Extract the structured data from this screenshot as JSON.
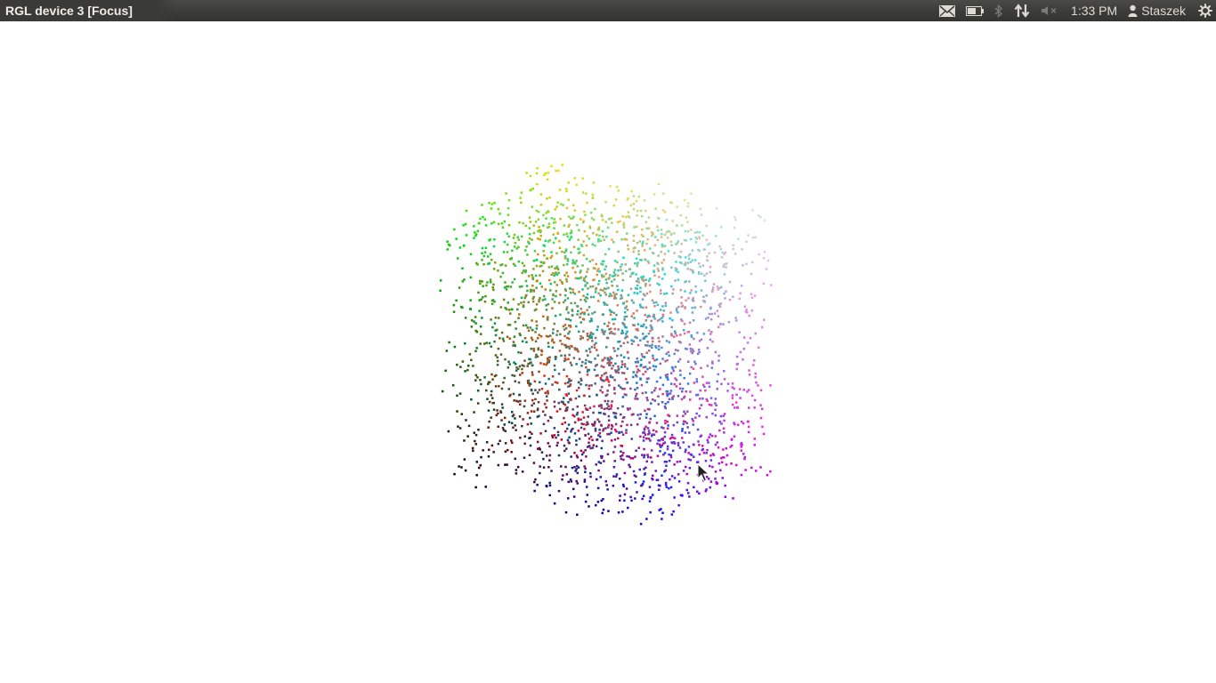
{
  "window": {
    "title": "RGL device 3 [Focus]"
  },
  "panel": {
    "indicators": [
      {
        "name": "mail-icon",
        "interactable": true
      },
      {
        "name": "battery-icon",
        "interactable": true
      },
      {
        "name": "bluetooth-icon",
        "interactable": true,
        "dim": true
      },
      {
        "name": "network-icon",
        "interactable": true
      },
      {
        "name": "volume-muted-icon",
        "interactable": true,
        "dim": true
      }
    ],
    "clock": "1:33 PM",
    "user": "Staszek",
    "session_icon": "gear-icon"
  },
  "scene": {
    "type": "3d-scatter-points",
    "background": "#ffffff",
    "color_mapping": "RGB color cube (x→red, y→green, z→blue)"
  }
}
